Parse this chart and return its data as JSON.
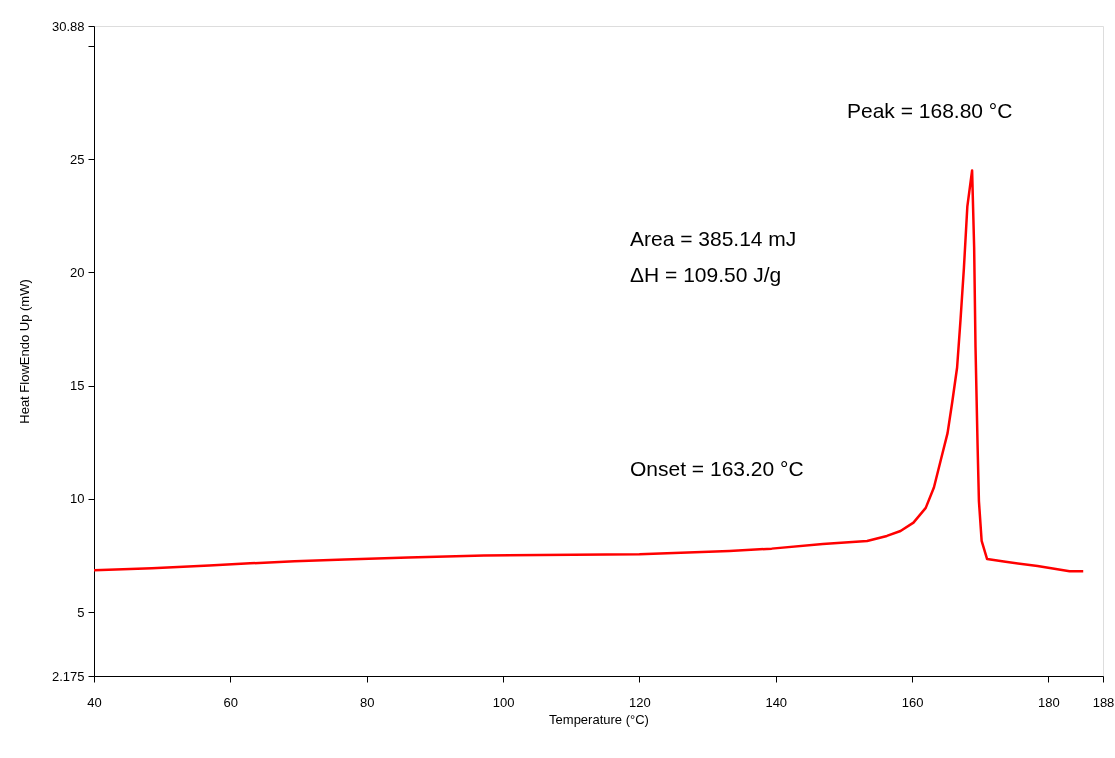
{
  "chart_data": {
    "type": "line",
    "xlabel": "Temperature (°C)",
    "ylabel": "Heat FlowEndo Up (mW)",
    "x": [
      40,
      48.5,
      56.9,
      62.9,
      69.4,
      76.8,
      86.1,
      97.2,
      120,
      133.2,
      139.4,
      146.9,
      153.4,
      156.3,
      158.3,
      160.2,
      162.0,
      163.2,
      164.2,
      165.2,
      165.9,
      166.6,
      167.1,
      167.6,
      168.1,
      168.8,
      169.1,
      169.3,
      169.6,
      169.8,
      170.2,
      171.0,
      173.7,
      178.4,
      183.1,
      185.1
    ],
    "series": [
      {
        "color": "#ff0000",
        "values": [
          6.85,
          6.93,
          7.05,
          7.15,
          7.24,
          7.32,
          7.41,
          7.5,
          7.55,
          7.7,
          7.8,
          8.0,
          8.14,
          8.36,
          8.58,
          8.95,
          9.6,
          10.5,
          11.7,
          12.9,
          14.3,
          15.8,
          17.9,
          20.2,
          22.9,
          24.5,
          21.1,
          16.7,
          12.4,
          9.9,
          8.14,
          7.34,
          7.22,
          7.03,
          6.8,
          6.8
        ]
      }
    ],
    "xlim": [
      40,
      188
    ],
    "xticks": [
      40,
      60,
      80,
      100,
      120,
      140,
      160,
      180,
      188
    ],
    "ylim": [
      2.175,
      30.88
    ],
    "yticks": [
      2.175,
      5,
      10,
      15,
      20,
      25,
      {
        "value": 30,
        "label": null
      },
      30.88
    ],
    "grid": false,
    "marker": "none",
    "line_style": "solid",
    "annotations": [
      "Peak = 168.80 °C",
      "Area = 385.14 mJ",
      "ΔH = 109.50 J/g",
      "Onset = 163.20 °C"
    ]
  }
}
